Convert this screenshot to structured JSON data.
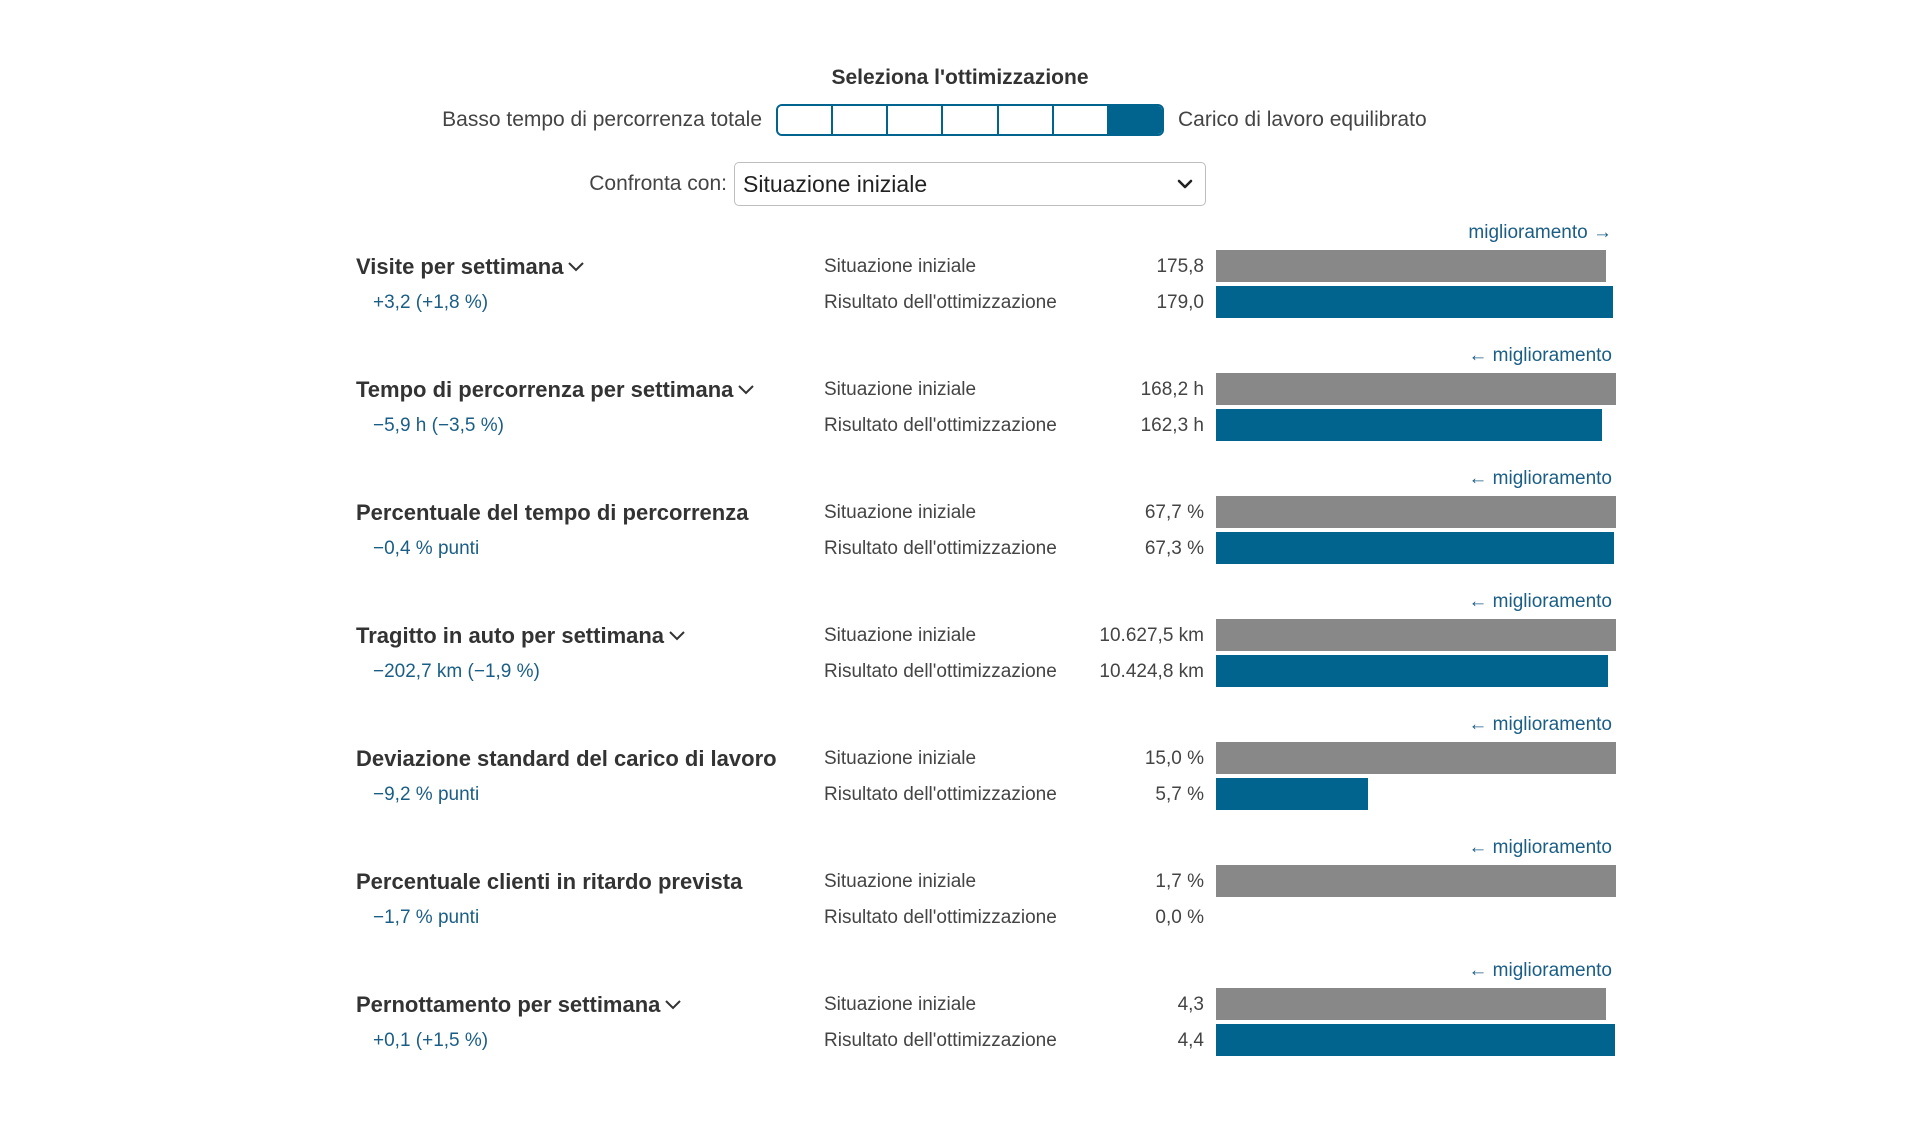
{
  "optimization": {
    "title": "Seleziona l'ottimizzazione",
    "left_label": "Basso tempo di percorrenza totale",
    "right_label": "Carico di lavoro equilibrato",
    "segments": 7,
    "selected_segment": 7,
    "accent_color": "#00648f"
  },
  "compare": {
    "label": "Confronta con:",
    "selected": "Situazione iniziale"
  },
  "labels": {
    "baseline": "Situazione iniziale",
    "result": "Risultato dell'ottimizzazione"
  },
  "colors": {
    "baseline_bar": "#888888",
    "result_bar": "#00648f",
    "link": "#1b5e85"
  },
  "metrics": [
    {
      "title": "Visite per settimana",
      "expandable": true,
      "improvement": "miglioramento →",
      "delta": "+3,2 (+1,8 %)",
      "baseline_text": "175,8",
      "result_text": "179,0",
      "baseline_value": 175.8,
      "result_value": 179.0
    },
    {
      "title": "Tempo di percorrenza per settimana",
      "expandable": true,
      "improvement": "← miglioramento",
      "delta": "−5,9 h (−3,5 %)",
      "baseline_text": "168,2 h",
      "result_text": "162,3 h",
      "baseline_value": 168.2,
      "result_value": 162.3
    },
    {
      "title": "Percentuale del tempo di percorrenza",
      "expandable": false,
      "improvement": "← miglioramento",
      "delta": "−0,4 % punti",
      "baseline_text": "67,7 %",
      "result_text": "67,3 %",
      "baseline_value": 67.7,
      "result_value": 67.3
    },
    {
      "title": "Tragitto in auto per settimana",
      "expandable": true,
      "improvement": "← miglioramento",
      "delta": "−202,7 km (−1,9 %)",
      "baseline_text": "10.627,5 km",
      "result_text": "10.424,8 km",
      "baseline_value": 10627.5,
      "result_value": 10424.8
    },
    {
      "title": "Deviazione standard del carico di lavoro",
      "expandable": false,
      "improvement": "← miglioramento",
      "delta": "−9,2 % punti",
      "baseline_text": "15,0 %",
      "result_text": "5,7 %",
      "baseline_value": 15.0,
      "result_value": 5.7
    },
    {
      "title": "Percentuale clienti in ritardo prevista",
      "expandable": false,
      "improvement": "← miglioramento",
      "delta": "−1,7 % punti",
      "baseline_text": "1,7 %",
      "result_text": "0,0 %",
      "baseline_value": 1.7,
      "result_value": 0.0
    },
    {
      "title": "Pernottamento per settimana",
      "expandable": true,
      "improvement": "← miglioramento",
      "delta": "+0,1 (+1,5 %)",
      "baseline_text": "4,3",
      "result_text": "4,4",
      "baseline_value": 4.3,
      "result_value": 4.4
    }
  ]
}
